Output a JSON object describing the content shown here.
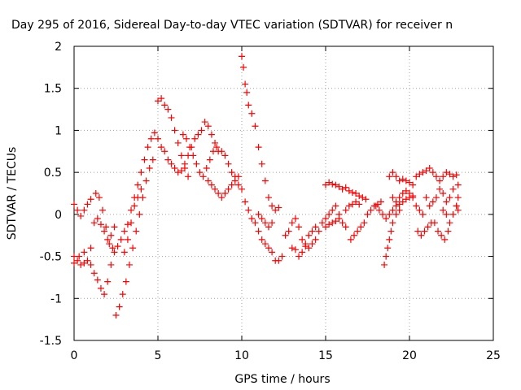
{
  "chart_data": {
    "type": "scatter",
    "title": "Day 295 of 2016, Sidereal Day-to-day VTEC variation (SDTVAR) for receiver n",
    "xlabel": "GPS time / hours",
    "ylabel": "SDTVAR / TECUs",
    "xlim": [
      0,
      25
    ],
    "ylim": [
      -1.5,
      2
    ],
    "xticks": [
      "0",
      "5",
      "10",
      "15",
      "20",
      "25"
    ],
    "yticks": [
      "-1.5",
      "-1",
      "-0.5",
      "0",
      "0.5",
      "1",
      "1.5",
      "2"
    ],
    "grid": true,
    "marker": "+",
    "color": "#ff0000",
    "series": [
      {
        "name": "",
        "points": [
          [
            0.0,
            0.12
          ],
          [
            0.2,
            0.05
          ],
          [
            0.4,
            -0.02
          ],
          [
            0.6,
            0.05
          ],
          [
            0.8,
            0.12
          ],
          [
            1.0,
            0.18
          ],
          [
            0.0,
            -0.5
          ],
          [
            0.2,
            -0.55
          ],
          [
            0.4,
            -0.6
          ],
          [
            0.6,
            -0.58
          ],
          [
            0.8,
            -0.55
          ],
          [
            1.0,
            -0.6
          ],
          [
            1.2,
            -0.7
          ],
          [
            1.4,
            -0.78
          ],
          [
            1.6,
            -0.88
          ],
          [
            1.8,
            -0.95
          ],
          [
            2.0,
            -0.8
          ],
          [
            2.2,
            -0.6
          ],
          [
            2.4,
            -0.45
          ],
          [
            2.6,
            -0.38
          ],
          [
            2.8,
            -0.3
          ],
          [
            3.0,
            -0.2
          ],
          [
            3.2,
            -0.12
          ],
          [
            3.4,
            0.05
          ],
          [
            3.6,
            0.2
          ],
          [
            3.8,
            0.35
          ],
          [
            4.0,
            0.5
          ],
          [
            4.2,
            0.65
          ],
          [
            4.4,
            0.8
          ],
          [
            4.6,
            0.9
          ],
          [
            4.8,
            0.97
          ],
          [
            5.0,
            0.9
          ],
          [
            5.2,
            0.8
          ],
          [
            0.0,
            -0.58
          ],
          [
            0.3,
            -0.5
          ],
          [
            0.6,
            -0.45
          ],
          [
            1.0,
            -0.4
          ],
          [
            1.2,
            -0.1
          ],
          [
            1.4,
            -0.05
          ],
          [
            1.6,
            -0.12
          ],
          [
            1.8,
            -0.2
          ],
          [
            2.0,
            -0.3
          ],
          [
            2.2,
            -0.25
          ],
          [
            2.4,
            -0.15
          ],
          [
            1.3,
            0.25
          ],
          [
            1.5,
            0.2
          ],
          [
            1.7,
            0.05
          ],
          [
            1.9,
            -0.15
          ],
          [
            2.1,
            -0.35
          ],
          [
            2.3,
            -0.4
          ],
          [
            2.5,
            -1.2
          ],
          [
            2.7,
            -1.1
          ],
          [
            2.9,
            -0.95
          ],
          [
            3.1,
            -0.8
          ],
          [
            3.3,
            -0.6
          ],
          [
            3.5,
            -0.4
          ],
          [
            3.7,
            -0.2
          ],
          [
            3.9,
            0.0
          ],
          [
            4.1,
            0.2
          ],
          [
            4.3,
            0.4
          ],
          [
            4.5,
            0.55
          ],
          [
            4.7,
            0.65
          ],
          [
            3.0,
            -0.45
          ],
          [
            3.2,
            -0.3
          ],
          [
            3.4,
            -0.1
          ],
          [
            3.6,
            0.1
          ],
          [
            3.8,
            0.2
          ],
          [
            4.0,
            0.3
          ],
          [
            5.0,
            1.35
          ],
          [
            5.2,
            1.38
          ],
          [
            5.4,
            1.3
          ],
          [
            5.6,
            1.25
          ],
          [
            5.8,
            1.15
          ],
          [
            6.0,
            1.0
          ],
          [
            6.2,
            0.85
          ],
          [
            6.4,
            0.7
          ],
          [
            6.6,
            0.55
          ],
          [
            6.8,
            0.45
          ],
          [
            5.4,
            0.75
          ],
          [
            5.6,
            0.65
          ],
          [
            5.8,
            0.6
          ],
          [
            6.0,
            0.55
          ],
          [
            6.2,
            0.5
          ],
          [
            6.4,
            0.52
          ],
          [
            6.6,
            0.6
          ],
          [
            6.8,
            0.7
          ],
          [
            7.0,
            0.8
          ],
          [
            7.2,
            0.9
          ],
          [
            7.4,
            0.95
          ],
          [
            7.6,
            1.0
          ],
          [
            7.8,
            1.1
          ],
          [
            8.0,
            1.05
          ],
          [
            8.2,
            0.95
          ],
          [
            8.4,
            0.85
          ],
          [
            8.6,
            0.75
          ],
          [
            6.5,
            0.95
          ],
          [
            6.7,
            0.9
          ],
          [
            6.9,
            0.8
          ],
          [
            7.1,
            0.7
          ],
          [
            7.3,
            0.6
          ],
          [
            7.5,
            0.5
          ],
          [
            7.7,
            0.45
          ],
          [
            7.9,
            0.55
          ],
          [
            8.1,
            0.65
          ],
          [
            8.3,
            0.75
          ],
          [
            8.5,
            0.8
          ],
          [
            8.8,
            0.75
          ],
          [
            9.0,
            0.7
          ],
          [
            9.2,
            0.6
          ],
          [
            9.4,
            0.5
          ],
          [
            9.6,
            0.45
          ],
          [
            9.8,
            0.35
          ],
          [
            8.0,
            0.4
          ],
          [
            8.2,
            0.35
          ],
          [
            8.4,
            0.3
          ],
          [
            8.6,
            0.25
          ],
          [
            8.8,
            0.2
          ],
          [
            9.0,
            0.25
          ],
          [
            9.2,
            0.3
          ],
          [
            9.4,
            0.35
          ],
          [
            9.6,
            0.4
          ],
          [
            9.8,
            0.45
          ],
          [
            10.0,
            1.88
          ],
          [
            10.1,
            1.75
          ],
          [
            10.2,
            1.55
          ],
          [
            10.3,
            1.45
          ],
          [
            10.4,
            1.3
          ],
          [
            10.6,
            1.2
          ],
          [
            10.8,
            1.05
          ],
          [
            11.0,
            0.8
          ],
          [
            11.2,
            0.6
          ],
          [
            11.4,
            0.4
          ],
          [
            11.6,
            0.2
          ],
          [
            11.8,
            0.1
          ],
          [
            10.0,
            0.3
          ],
          [
            10.2,
            0.15
          ],
          [
            10.4,
            0.05
          ],
          [
            10.6,
            -0.05
          ],
          [
            10.8,
            -0.1
          ],
          [
            11.0,
            -0.2
          ],
          [
            11.2,
            -0.3
          ],
          [
            11.4,
            -0.35
          ],
          [
            11.6,
            -0.4
          ],
          [
            11.8,
            -0.45
          ],
          [
            12.0,
            -0.55
          ],
          [
            12.2,
            -0.55
          ],
          [
            12.4,
            -0.5
          ],
          [
            11.0,
            0.0
          ],
          [
            11.2,
            -0.05
          ],
          [
            11.4,
            -0.1
          ],
          [
            11.6,
            -0.15
          ],
          [
            11.8,
            -0.1
          ],
          [
            12.0,
            0.05
          ],
          [
            12.2,
            0.08
          ],
          [
            12.6,
            -0.25
          ],
          [
            12.8,
            -0.2
          ],
          [
            13.0,
            -0.1
          ],
          [
            13.2,
            -0.05
          ],
          [
            13.4,
            -0.15
          ],
          [
            13.6,
            -0.3
          ],
          [
            13.8,
            -0.35
          ],
          [
            14.0,
            -0.4
          ],
          [
            14.2,
            -0.35
          ],
          [
            14.4,
            -0.3
          ],
          [
            13.0,
            -0.4
          ],
          [
            13.2,
            -0.42
          ],
          [
            13.4,
            -0.5
          ],
          [
            13.6,
            -0.45
          ],
          [
            13.8,
            -0.38
          ],
          [
            14.0,
            -0.25
          ],
          [
            14.2,
            -0.2
          ],
          [
            14.4,
            -0.15
          ],
          [
            14.6,
            -0.2
          ],
          [
            14.8,
            -0.1
          ],
          [
            15.0,
            -0.05
          ],
          [
            15.2,
            0.0
          ],
          [
            15.4,
            0.05
          ],
          [
            15.6,
            0.1
          ],
          [
            15.8,
            0.0
          ],
          [
            16.0,
            -0.1
          ],
          [
            16.2,
            -0.15
          ],
          [
            15.0,
            0.35
          ],
          [
            15.2,
            0.38
          ],
          [
            15.4,
            0.36
          ],
          [
            15.6,
            0.35
          ],
          [
            15.8,
            0.33
          ],
          [
            16.0,
            0.3
          ],
          [
            16.2,
            0.32
          ],
          [
            16.4,
            0.28
          ],
          [
            16.6,
            0.26
          ],
          [
            16.8,
            0.25
          ],
          [
            17.0,
            0.22
          ],
          [
            17.2,
            0.2
          ],
          [
            17.4,
            0.18
          ],
          [
            15.0,
            -0.15
          ],
          [
            15.2,
            -0.12
          ],
          [
            15.4,
            -0.1
          ],
          [
            15.6,
            -0.08
          ],
          [
            15.8,
            -0.05
          ],
          [
            16.2,
            0.05
          ],
          [
            16.4,
            0.1
          ],
          [
            16.6,
            0.12
          ],
          [
            16.8,
            0.15
          ],
          [
            17.0,
            0.12
          ],
          [
            16.5,
            -0.3
          ],
          [
            16.7,
            -0.25
          ],
          [
            16.9,
            -0.2
          ],
          [
            17.1,
            -0.15
          ],
          [
            17.3,
            -0.1
          ],
          [
            17.5,
            0.0
          ],
          [
            17.7,
            0.05
          ],
          [
            17.9,
            0.1
          ],
          [
            18.1,
            0.12
          ],
          [
            18.3,
            0.15
          ],
          [
            18.5,
            -0.6
          ],
          [
            18.6,
            -0.5
          ],
          [
            18.7,
            -0.4
          ],
          [
            18.8,
            -0.3
          ],
          [
            18.9,
            -0.2
          ],
          [
            19.0,
            -0.1
          ],
          [
            19.2,
            0.0
          ],
          [
            19.4,
            0.05
          ],
          [
            18.8,
            0.45
          ],
          [
            19.0,
            0.5
          ],
          [
            19.2,
            0.45
          ],
          [
            19.4,
            0.4
          ],
          [
            19.6,
            0.42
          ],
          [
            19.8,
            0.4
          ],
          [
            20.0,
            0.38
          ],
          [
            20.2,
            0.35
          ],
          [
            18.0,
            0.1
          ],
          [
            18.2,
            0.05
          ],
          [
            18.4,
            0.0
          ],
          [
            18.6,
            -0.05
          ],
          [
            18.8,
            0.0
          ],
          [
            19.0,
            0.05
          ],
          [
            19.2,
            0.1
          ],
          [
            19.4,
            0.12
          ],
          [
            19.6,
            0.15
          ],
          [
            19.8,
            0.18
          ],
          [
            20.0,
            0.2
          ],
          [
            20.2,
            0.22
          ],
          [
            19.0,
            0.2
          ],
          [
            19.2,
            0.15
          ],
          [
            19.4,
            0.2
          ],
          [
            19.6,
            0.25
          ],
          [
            19.8,
            0.28
          ],
          [
            20.0,
            0.25
          ],
          [
            20.2,
            0.2
          ],
          [
            20.4,
            0.1
          ],
          [
            20.6,
            0.05
          ],
          [
            20.8,
            0.0
          ],
          [
            20.4,
            0.45
          ],
          [
            20.6,
            0.48
          ],
          [
            20.8,
            0.5
          ],
          [
            21.0,
            0.52
          ],
          [
            21.2,
            0.55
          ],
          [
            21.4,
            0.5
          ],
          [
            21.6,
            0.45
          ],
          [
            21.8,
            0.4
          ],
          [
            22.0,
            0.45
          ],
          [
            22.2,
            0.5
          ],
          [
            22.4,
            0.48
          ],
          [
            22.6,
            0.45
          ],
          [
            22.8,
            0.47
          ],
          [
            20.5,
            -0.2
          ],
          [
            20.7,
            -0.25
          ],
          [
            20.9,
            -0.2
          ],
          [
            21.1,
            -0.15
          ],
          [
            21.3,
            -0.1
          ],
          [
            21.5,
            -0.1
          ],
          [
            21.7,
            -0.2
          ],
          [
            21.9,
            -0.25
          ],
          [
            22.1,
            -0.3
          ],
          [
            22.3,
            -0.2
          ],
          [
            21.0,
            0.2
          ],
          [
            21.2,
            0.1
          ],
          [
            21.4,
            0.15
          ],
          [
            21.6,
            0.2
          ],
          [
            21.8,
            0.3
          ],
          [
            22.0,
            0.25
          ],
          [
            22.2,
            0.15
          ],
          [
            22.4,
            0.2
          ],
          [
            22.6,
            0.3
          ],
          [
            22.8,
            0.1
          ],
          [
            22.0,
            0.05
          ],
          [
            22.2,
            0.0
          ],
          [
            22.4,
            -0.1
          ],
          [
            22.6,
            0.0
          ],
          [
            22.8,
            0.1
          ],
          [
            22.9,
            0.2
          ],
          [
            22.9,
            0.35
          ],
          [
            22.9,
            0.05
          ]
        ]
      }
    ]
  }
}
